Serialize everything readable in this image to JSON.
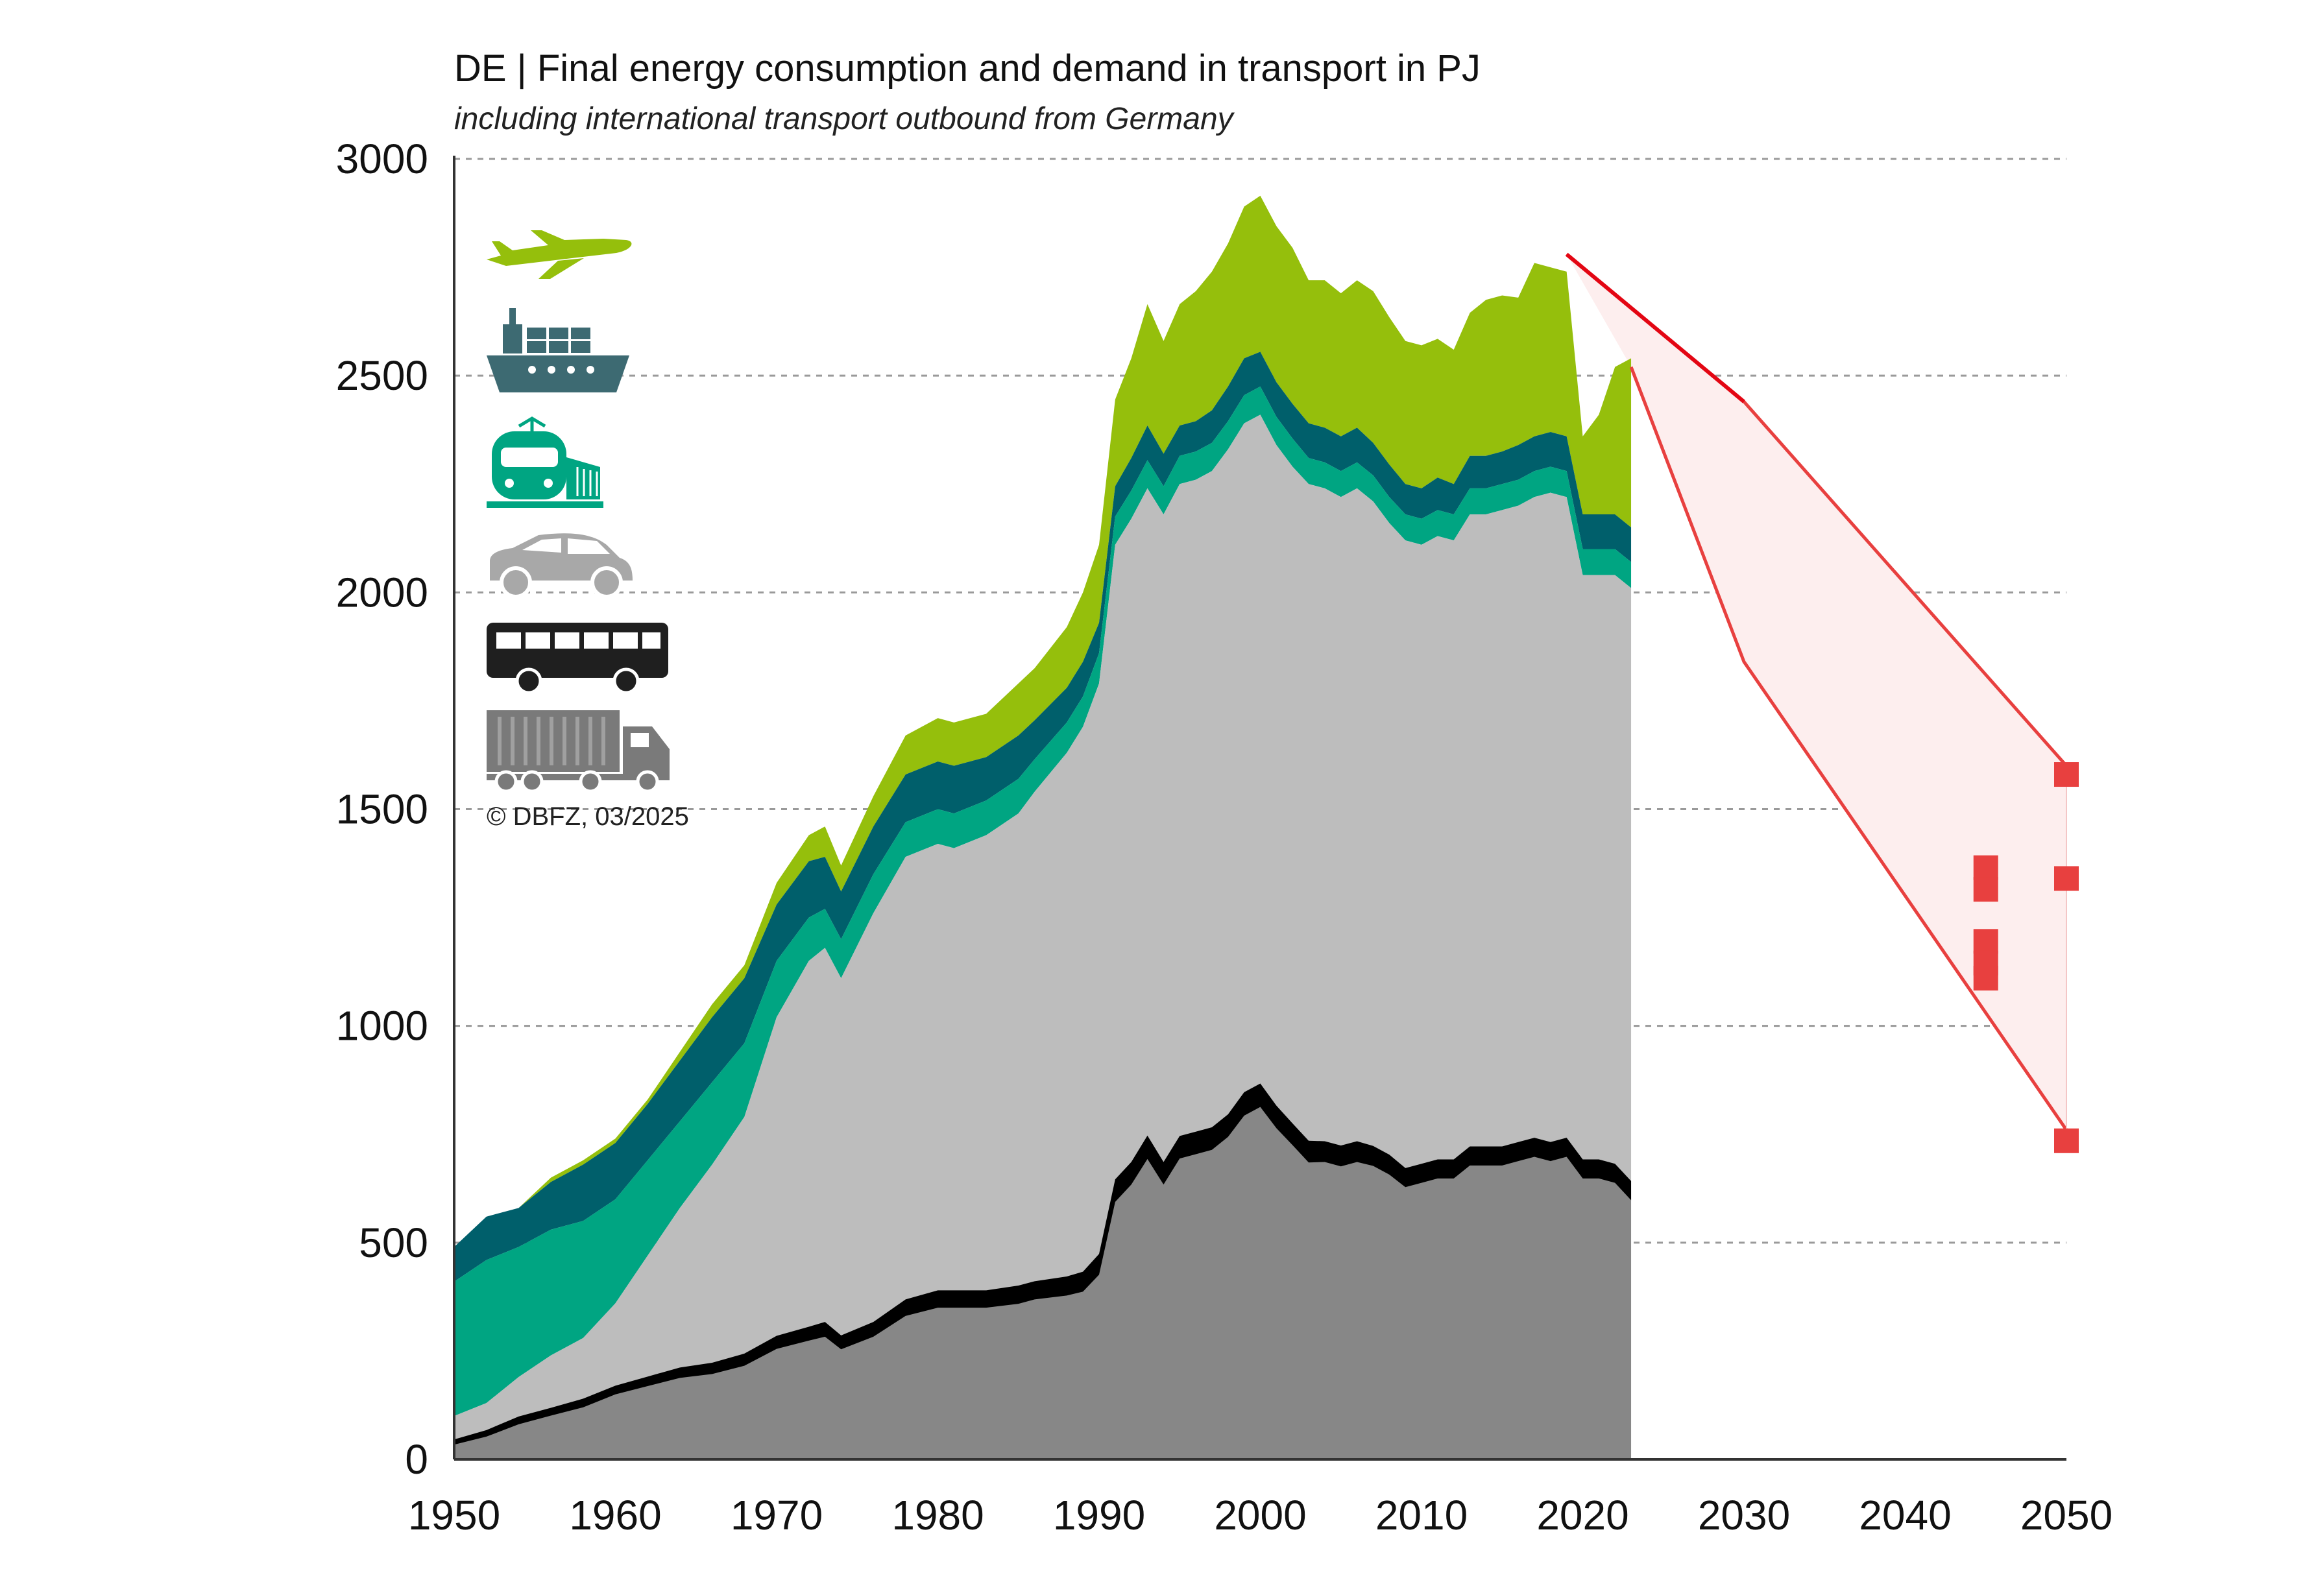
{
  "title": "DE | Final energy consumption and demand in transport in PJ",
  "subtitle": "including international transport outbound from Germany",
  "credit": "© DBFZ, 03/2025",
  "colors": {
    "aviation": "#95bf0c",
    "shipping": "#005f6b",
    "rail": "#00a582",
    "road_passenger": "#bdbdbd",
    "road_freight": "#878787",
    "freight_line": "#000000",
    "projection": "#e8403f",
    "projection_fill": "#fdeeee",
    "projection_red": "#e30613"
  },
  "icons": [
    "airplane-icon",
    "ship-icon",
    "train-icon",
    "car-icon",
    "bus-icon",
    "truck-icon"
  ],
  "chart_data": {
    "type": "area",
    "stacked": true,
    "xlim": [
      1950,
      2050
    ],
    "ylim": [
      0,
      3000
    ],
    "x_ticks": [
      1950,
      1960,
      1970,
      1980,
      1990,
      2000,
      2010,
      2020,
      2030,
      2040,
      2050
    ],
    "y_ticks": [
      0,
      500,
      1000,
      1500,
      2000,
      2500,
      3000
    ],
    "grid": "horizontal dashed",
    "x": [
      1950,
      1952,
      1954,
      1956,
      1958,
      1960,
      1962,
      1964,
      1966,
      1968,
      1970,
      1972,
      1973,
      1974,
      1976,
      1978,
      1980,
      1981,
      1983,
      1985,
      1986,
      1988,
      1989,
      1990,
      1991,
      1992,
      1993,
      1994,
      1995,
      1996,
      1997,
      1998,
      1999,
      2000,
      2001,
      2002,
      2003,
      2004,
      2005,
      2006,
      2007,
      2008,
      2009,
      2010,
      2011,
      2012,
      2013,
      2014,
      2015,
      2016,
      2017,
      2018,
      2019,
      2020,
      2021,
      2022,
      2023
    ],
    "series": [
      {
        "key": "road_freight",
        "values": [
          40,
          60,
          90,
          110,
          130,
          160,
          180,
          200,
          210,
          230,
          270,
          290,
          300,
          270,
          300,
          350,
          370,
          370,
          370,
          380,
          390,
          400,
          410,
          450,
          620,
          660,
          720,
          660,
          720,
          730,
          740,
          770,
          820,
          840,
          790,
          750,
          710,
          710,
          700,
          710,
          700,
          680,
          650,
          660,
          670,
          670,
          700,
          700,
          700,
          710,
          720,
          710,
          720,
          670,
          670,
          660,
          620
        ]
      },
      {
        "key": "road_passenger",
        "values": [
          60,
          70,
          100,
          130,
          150,
          200,
          290,
          380,
          470,
          560,
          750,
          860,
          880,
          840,
          960,
          1040,
          1050,
          1040,
          1070,
          1110,
          1150,
          1230,
          1280,
          1340,
          1490,
          1510,
          1520,
          1520,
          1530,
          1530,
          1540,
          1560,
          1570,
          1570,
          1550,
          1540,
          1540,
          1530,
          1520,
          1530,
          1510,
          1480,
          1470,
          1450,
          1460,
          1450,
          1480,
          1480,
          1490,
          1490,
          1500,
          1520,
          1500,
          1370,
          1370,
          1380,
          1390
        ]
      },
      {
        "key": "rail",
        "values": [
          310,
          330,
          300,
          290,
          270,
          240,
          220,
          200,
          190,
          170,
          130,
          100,
          90,
          90,
          90,
          80,
          80,
          80,
          80,
          80,
          75,
          70,
          70,
          70,
          65,
          65,
          65,
          65,
          65,
          65,
          65,
          65,
          65,
          65,
          65,
          65,
          60,
          60,
          60,
          60,
          60,
          60,
          60,
          60,
          60,
          60,
          60,
          60,
          60,
          60,
          60,
          60,
          60,
          60,
          60,
          60,
          60
        ]
      },
      {
        "key": "shipping",
        "values": [
          80,
          100,
          90,
          110,
          130,
          130,
          130,
          140,
          150,
          150,
          130,
          130,
          120,
          110,
          110,
          110,
          110,
          110,
          100,
          100,
          90,
          80,
          80,
          70,
          70,
          75,
          80,
          75,
          70,
          70,
          75,
          80,
          85,
          80,
          80,
          80,
          80,
          80,
          80,
          80,
          75,
          75,
          70,
          70,
          75,
          70,
          75,
          75,
          75,
          80,
          80,
          80,
          80,
          80,
          80,
          80,
          80
        ]
      },
      {
        "key": "aviation",
        "values": [
          0,
          0,
          0,
          10,
          10,
          10,
          10,
          20,
          30,
          30,
          50,
          60,
          70,
          60,
          70,
          90,
          100,
          100,
          100,
          120,
          120,
          140,
          160,
          180,
          200,
          230,
          280,
          260,
          280,
          300,
          320,
          330,
          350,
          360,
          360,
          360,
          330,
          340,
          330,
          340,
          350,
          340,
          330,
          330,
          320,
          310,
          330,
          360,
          360,
          340,
          400,
          380,
          380,
          180,
          230,
          340,
          390
        ]
      }
    ],
    "freight_line_thickness_pj": [
      12,
      15,
      18,
      18,
      20,
      20,
      22,
      24,
      26,
      28,
      30,
      32,
      34,
      32,
      34,
      38,
      40,
      40,
      40,
      42,
      42,
      44,
      46,
      48,
      52,
      52,
      54,
      52,
      52,
      52,
      52,
      52,
      54,
      54,
      52,
      50,
      50,
      48,
      48,
      48,
      46,
      46,
      44,
      44,
      44,
      44,
      44,
      44,
      44,
      44,
      44,
      44,
      44,
      44,
      44,
      44,
      44
    ],
    "projection": {
      "upper": [
        [
          2019,
          2780
        ],
        [
          2030,
          2440
        ],
        [
          2050,
          1600
        ]
      ],
      "lower": [
        [
          2023,
          2520
        ],
        [
          2030,
          1840
        ],
        [
          2050,
          760
        ]
      ],
      "points": [
        {
          "x": 2050,
          "y": 1580
        },
        {
          "x": 2050,
          "y": 1340
        },
        {
          "x": 2050,
          "y": 735
        },
        {
          "x": 2045,
          "y": 1365
        },
        {
          "x": 2045,
          "y": 1315
        },
        {
          "x": 2045,
          "y": 1195
        },
        {
          "x": 2045,
          "y": 1145
        },
        {
          "x": 2045,
          "y": 1110
        }
      ]
    }
  }
}
